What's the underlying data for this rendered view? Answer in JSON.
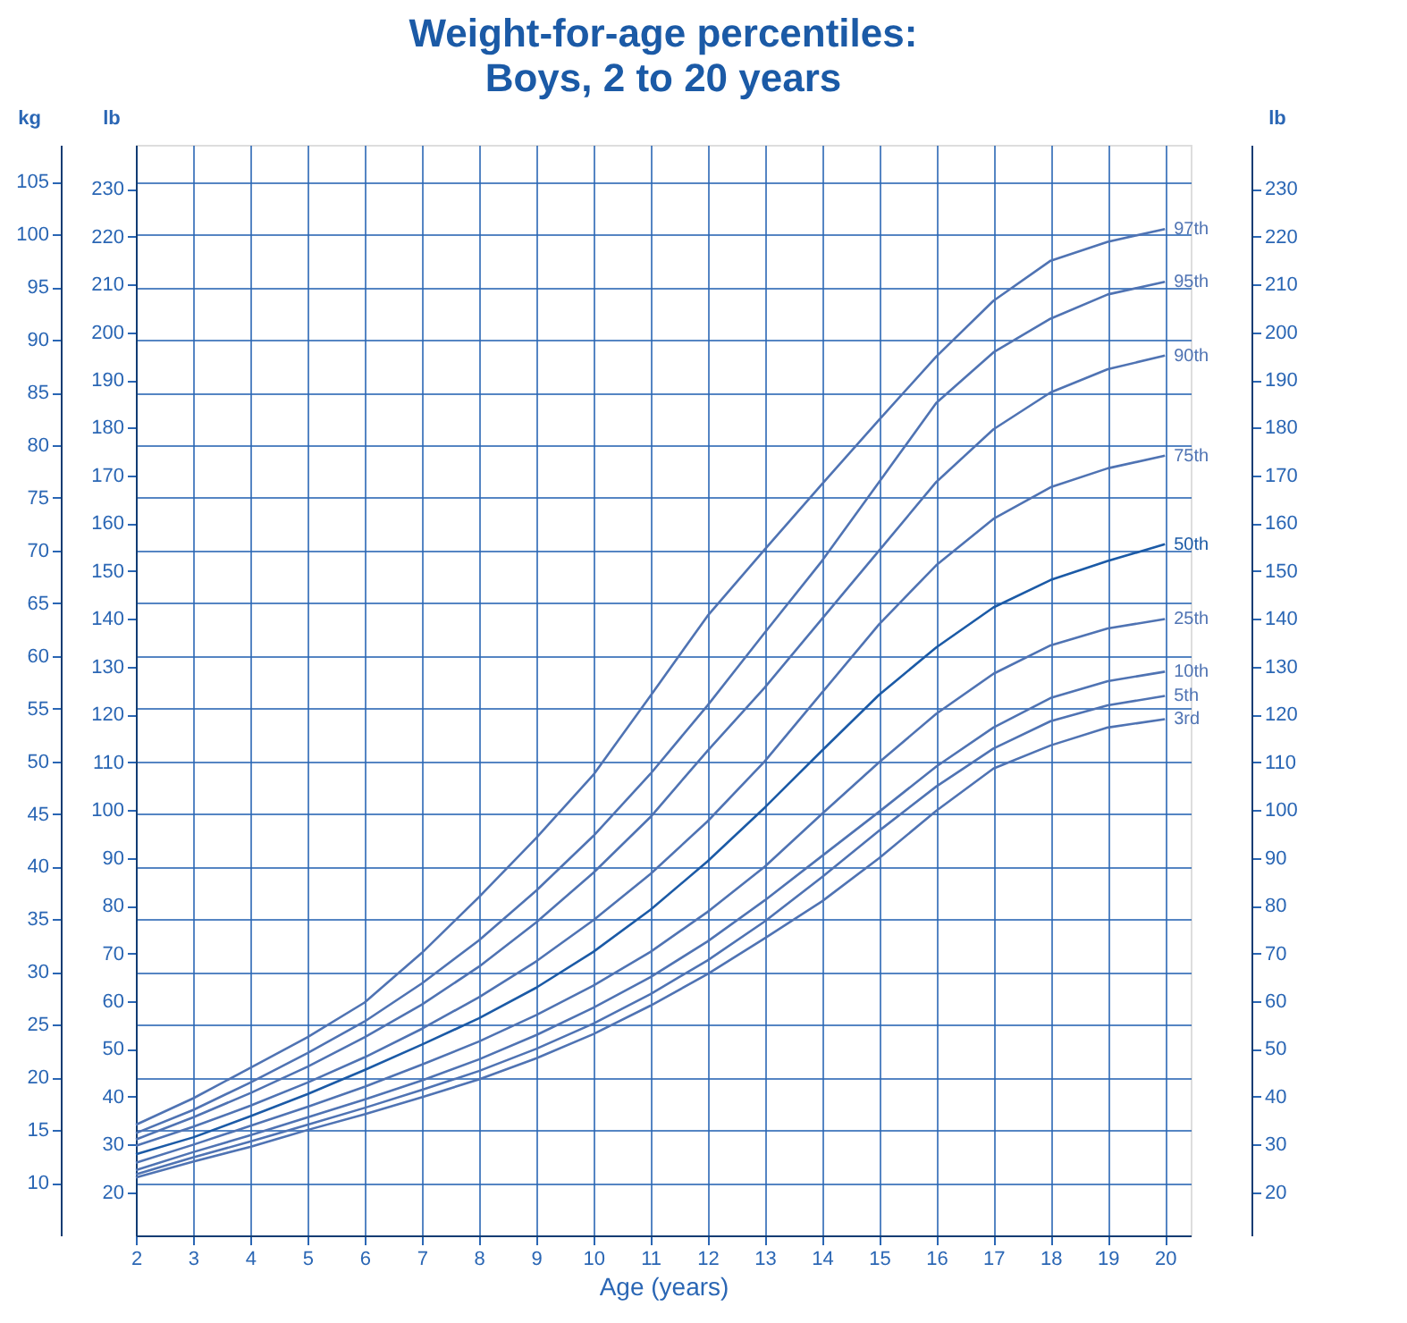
{
  "chart_data": {
    "type": "line",
    "title": "Weight-for-age percentiles:",
    "subtitle": "Boys, 2 to 20 years",
    "xlabel": "Age (years)",
    "ylabel": "kg",
    "y2label": "lb",
    "y3label": "lb",
    "x": [
      2,
      3,
      4,
      5,
      6,
      7,
      8,
      9,
      10,
      11,
      12,
      13,
      14,
      15,
      16,
      17,
      18,
      19,
      20
    ],
    "xlim": [
      2,
      20.45
    ],
    "xticks": [
      2,
      3,
      4,
      5,
      6,
      7,
      8,
      9,
      10,
      11,
      12,
      13,
      14,
      15,
      16,
      17,
      18,
      19,
      20
    ],
    "ylim": [
      5,
      108.5
    ],
    "yticks": [
      10,
      15,
      20,
      25,
      30,
      35,
      40,
      45,
      50,
      55,
      60,
      65,
      70,
      75,
      80,
      85,
      90,
      95,
      100,
      105
    ],
    "y2lim": [
      11.0,
      239.2
    ],
    "y2ticks": [
      20,
      30,
      40,
      50,
      60,
      70,
      80,
      90,
      100,
      110,
      120,
      130,
      140,
      150,
      160,
      170,
      180,
      190,
      200,
      210,
      220,
      230
    ],
    "y3lim": [
      11.0,
      239.2
    ],
    "y3ticks": [
      20,
      30,
      40,
      50,
      60,
      70,
      80,
      90,
      100,
      110,
      120,
      130,
      140,
      150,
      160,
      170,
      180,
      190,
      200,
      210,
      220,
      230
    ],
    "grid": true,
    "line_style": "solid",
    "series": [
      {
        "name": "97th",
        "color": "#4f73b3",
        "values": [
          15.5,
          18.0,
          20.9,
          23.8,
          27.1,
          31.8,
          37.1,
          42.7,
          48.7,
          56.2,
          63.8,
          70.1,
          76.3,
          82.4,
          88.4,
          93.7,
          97.5,
          99.3,
          100.5
        ]
      },
      {
        "name": "95th",
        "color": "#4f73b3",
        "values": [
          14.7,
          16.9,
          19.5,
          22.3,
          25.3,
          28.9,
          33.0,
          37.7,
          42.9,
          48.8,
          55.3,
          62.2,
          69.0,
          76.5,
          84.0,
          88.8,
          92.0,
          94.3,
          95.5
        ]
      },
      {
        "name": "90th",
        "color": "#4f73b3",
        "values": [
          14.1,
          16.2,
          18.5,
          21.0,
          23.8,
          26.9,
          30.5,
          34.7,
          39.4,
          44.7,
          51.0,
          57.0,
          63.5,
          70.0,
          76.5,
          81.5,
          85.0,
          87.2,
          88.5
        ]
      },
      {
        "name": "75th",
        "color": "#4f73b3",
        "values": [
          13.5,
          15.3,
          17.3,
          19.5,
          21.9,
          24.6,
          27.6,
          31.0,
          34.9,
          39.3,
          44.3,
          50.0,
          56.5,
          63.0,
          68.6,
          73.0,
          76.0,
          77.8,
          79.0
        ]
      },
      {
        "name": "50th",
        "color": "#1b5aa6",
        "values": [
          12.7,
          14.3,
          16.3,
          18.4,
          20.7,
          23.1,
          25.6,
          28.5,
          31.9,
          35.9,
          40.5,
          45.6,
          51.0,
          56.3,
          60.8,
          64.6,
          67.2,
          69.0,
          70.6
        ]
      },
      {
        "name": "25th",
        "color": "#4f73b3",
        "values": [
          11.9,
          13.6,
          15.4,
          17.2,
          19.1,
          21.2,
          23.4,
          25.9,
          28.7,
          31.9,
          35.7,
          40.0,
          45.0,
          49.9,
          54.5,
          58.3,
          61.0,
          62.6,
          63.5
        ]
      },
      {
        "name": "10th",
        "color": "#4f73b3",
        "values": [
          11.2,
          12.9,
          14.5,
          16.2,
          17.9,
          19.7,
          21.7,
          24.0,
          26.6,
          29.5,
          32.9,
          36.8,
          41.0,
          45.2,
          49.5,
          53.2,
          56.0,
          57.6,
          58.5
        ]
      },
      {
        "name": "5th",
        "color": "#4f73b3",
        "values": [
          10.8,
          12.4,
          13.9,
          15.5,
          17.1,
          18.8,
          20.6,
          22.7,
          25.1,
          27.9,
          31.1,
          34.8,
          39.0,
          43.4,
          47.6,
          51.2,
          53.8,
          55.3,
          56.2
        ]
      },
      {
        "name": "3rd",
        "color": "#4f73b3",
        "values": [
          10.5,
          12.0,
          13.4,
          15.0,
          16.5,
          18.1,
          19.8,
          21.8,
          24.1,
          26.8,
          29.8,
          33.2,
          36.7,
          40.8,
          45.3,
          49.3,
          51.5,
          53.2,
          54.0
        ]
      }
    ]
  }
}
